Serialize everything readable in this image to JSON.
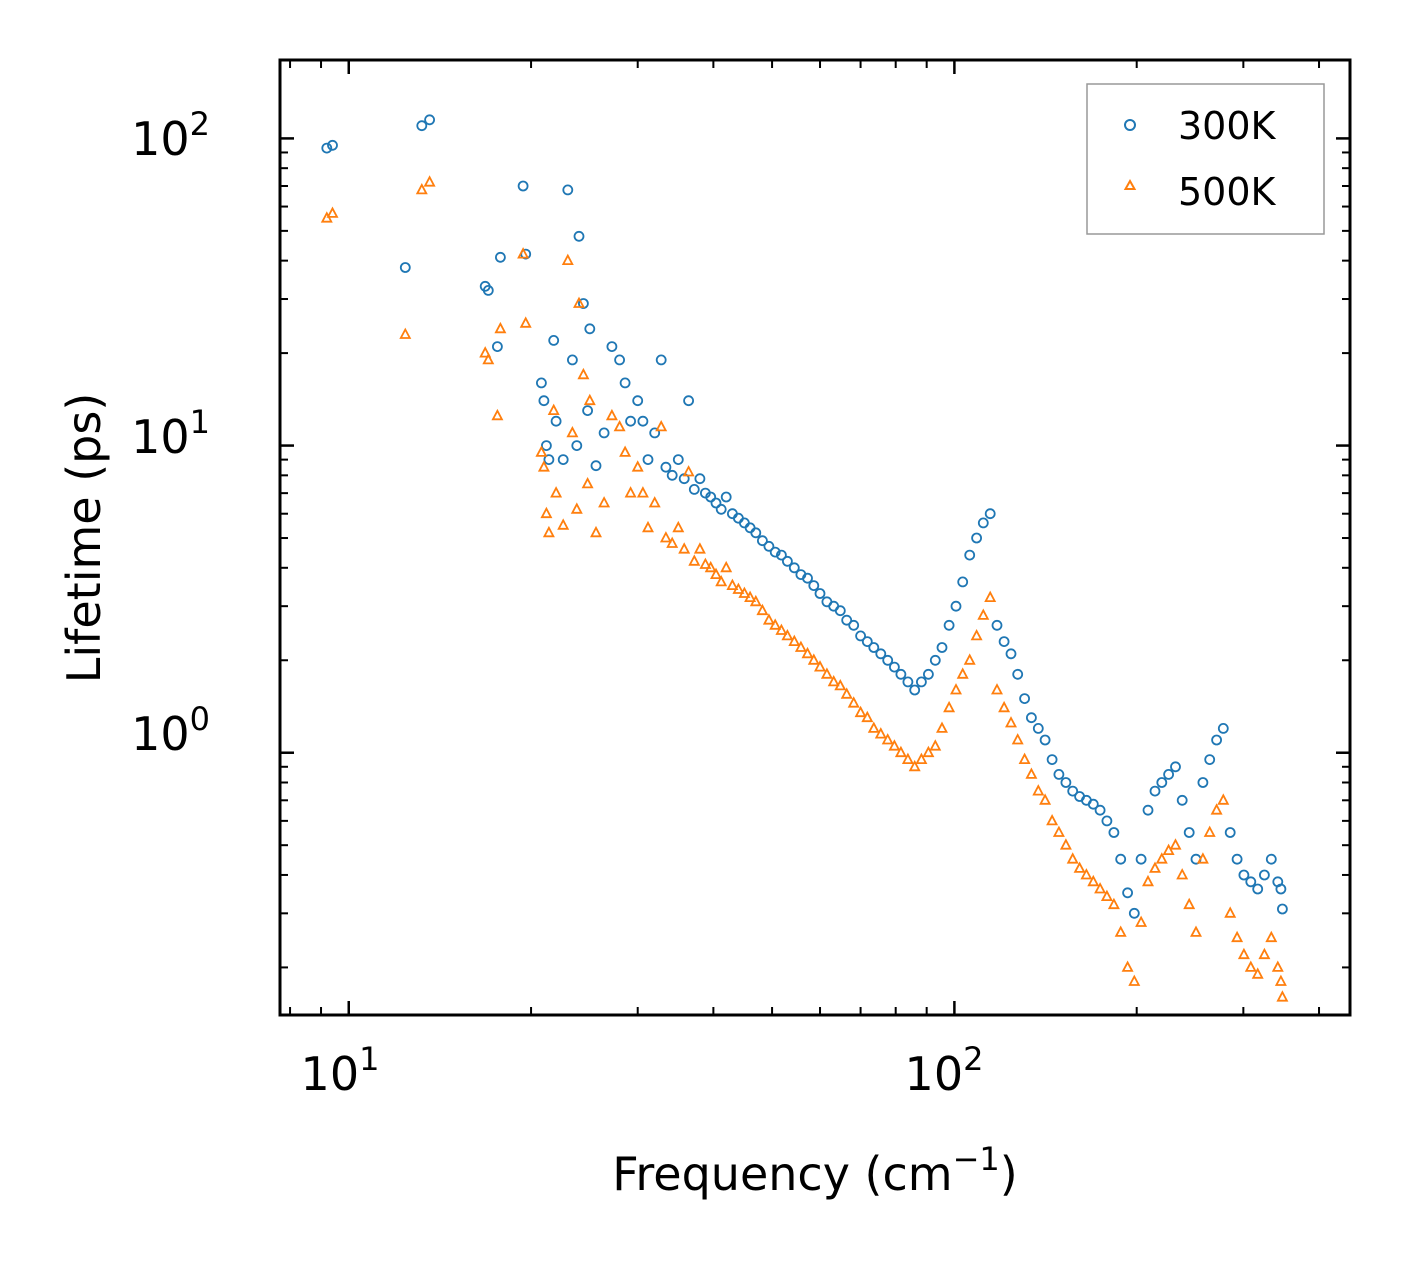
{
  "chart_data": {
    "type": "scatter",
    "title": "",
    "xlabel": "Frequency (cm",
    "xlabel_superscript": "−1",
    "xlabel_suffix": ")",
    "ylabel": "Lifetime (ps)",
    "xscale": "log",
    "yscale": "log",
    "xlim": [
      7.7,
      450
    ],
    "ylim": [
      0.14,
      180
    ],
    "x_ticks": [
      {
        "value": 10,
        "base": "10",
        "exp": "1"
      },
      {
        "value": 100,
        "base": "10",
        "exp": "2"
      }
    ],
    "y_ticks": [
      {
        "value": 1,
        "base": "10",
        "exp": "0"
      },
      {
        "value": 10,
        "base": "10",
        "exp": "1"
      },
      {
        "value": 100,
        "base": "10",
        "exp": "2"
      }
    ],
    "legend": {
      "position": "top-right",
      "entries": [
        "300K",
        "500K"
      ]
    },
    "colors": {
      "300K": "#1f77b4",
      "500K": "#ff7f0e"
    },
    "series": [
      {
        "name": "300K",
        "marker": "circle",
        "x": [
          9.2,
          9.4,
          12.4,
          13.2,
          13.6,
          16.8,
          17.0,
          17.6,
          17.8,
          19.4,
          19.6,
          20.8,
          21.0,
          21.2,
          21.4,
          21.8,
          22.0,
          22.6,
          23.0,
          23.4,
          23.8,
          24.0,
          24.4,
          24.8,
          25.0,
          25.6,
          26.4,
          27.2,
          28.0,
          28.6,
          29.2,
          30.0,
          30.6,
          31.2,
          32.0,
          32.8,
          33.4,
          34.2,
          35.0,
          35.8,
          36.4,
          37.2,
          38.0,
          38.8,
          39.6,
          40.4,
          41.2,
          42.0,
          43.0,
          44.0,
          45.0,
          46.0,
          47.0,
          48.2,
          49.4,
          50.6,
          51.8,
          53.0,
          54.4,
          55.8,
          57.2,
          58.6,
          60.0,
          61.6,
          63.2,
          64.8,
          66.4,
          68.2,
          70.0,
          71.8,
          73.6,
          75.6,
          77.6,
          79.6,
          81.6,
          83.8,
          86.0,
          88.2,
          90.6,
          93.0,
          95.4,
          98.0,
          100.6,
          103.2,
          106.0,
          108.8,
          111.6,
          114.6,
          117.6,
          120.8,
          124.0,
          127.2,
          130.6,
          134.0,
          137.6,
          141.2,
          145.0,
          148.8,
          152.8,
          156.8,
          161.0,
          165.2,
          169.6,
          174.0,
          178.6,
          183.4,
          188.2,
          193.2,
          198.2,
          203.4,
          208.8,
          214.4,
          220.0,
          225.8,
          231.8,
          237.8,
          244.2,
          250.6,
          257.2,
          264.0,
          271.0,
          278.0,
          285.4,
          293.0,
          300.6,
          308.6,
          316.8,
          325.0,
          333.6,
          342.0,
          346.0,
          348.0
        ],
        "y": [
          93,
          95,
          38,
          110,
          115,
          33,
          32,
          21,
          41,
          70,
          42,
          16,
          14,
          10,
          9,
          22,
          12,
          9,
          68,
          19,
          10,
          48,
          29,
          13,
          24,
          8.6,
          11,
          21,
          19,
          16,
          12,
          14,
          12,
          9,
          11,
          19,
          8.5,
          8,
          9,
          7.8,
          14,
          7.2,
          7.8,
          7,
          6.8,
          6.5,
          6.2,
          6.8,
          6,
          5.8,
          5.6,
          5.4,
          5.2,
          4.9,
          4.7,
          4.5,
          4.4,
          4.2,
          4.0,
          3.8,
          3.7,
          3.5,
          3.3,
          3.1,
          3.0,
          2.9,
          2.7,
          2.6,
          2.4,
          2.3,
          2.2,
          2.1,
          2.0,
          1.9,
          1.8,
          1.7,
          1.6,
          1.7,
          1.8,
          2.0,
          2.2,
          2.6,
          3.0,
          3.6,
          4.4,
          5.0,
          5.6,
          6.0,
          2.6,
          2.3,
          2.1,
          1.8,
          1.5,
          1.3,
          1.2,
          1.1,
          0.95,
          0.85,
          0.8,
          0.75,
          0.72,
          0.7,
          0.68,
          0.65,
          0.6,
          0.55,
          0.45,
          0.35,
          0.3,
          0.45,
          0.65,
          0.75,
          0.8,
          0.85,
          0.9,
          0.7,
          0.55,
          0.45,
          0.8,
          0.95,
          1.1,
          1.2,
          0.55,
          0.45,
          0.4,
          0.38,
          0.36,
          0.4,
          0.45,
          0.38,
          0.36,
          0.31
        ]
      },
      {
        "name": "500K",
        "marker": "triangle",
        "x": [
          9.2,
          9.4,
          12.4,
          13.2,
          13.6,
          16.8,
          17.0,
          17.6,
          17.8,
          19.4,
          19.6,
          20.8,
          21.0,
          21.2,
          21.4,
          21.8,
          22.0,
          22.6,
          23.0,
          23.4,
          23.8,
          24.0,
          24.4,
          24.8,
          25.0,
          25.6,
          26.4,
          27.2,
          28.0,
          28.6,
          29.2,
          30.0,
          30.6,
          31.2,
          32.0,
          32.8,
          33.4,
          34.2,
          35.0,
          35.8,
          36.4,
          37.2,
          38.0,
          38.8,
          39.6,
          40.4,
          41.2,
          42.0,
          43.0,
          44.0,
          45.0,
          46.0,
          47.0,
          48.2,
          49.4,
          50.6,
          51.8,
          53.0,
          54.4,
          55.8,
          57.2,
          58.6,
          60.0,
          61.6,
          63.2,
          64.8,
          66.4,
          68.2,
          70.0,
          71.8,
          73.6,
          75.6,
          77.6,
          79.6,
          81.6,
          83.8,
          86.0,
          88.2,
          90.6,
          93.0,
          95.4,
          98.0,
          100.6,
          103.2,
          106.0,
          108.8,
          111.6,
          114.6,
          117.6,
          120.8,
          124.0,
          127.2,
          130.6,
          134.0,
          137.6,
          141.2,
          145.0,
          148.8,
          152.8,
          156.8,
          161.0,
          165.2,
          169.6,
          174.0,
          178.6,
          183.4,
          188.2,
          193.2,
          198.2,
          203.4,
          208.8,
          214.4,
          220.0,
          225.8,
          231.8,
          237.8,
          244.2,
          250.6,
          257.2,
          264.0,
          271.0,
          278.0,
          285.4,
          293.0,
          300.6,
          308.6,
          316.8,
          325.0,
          333.6,
          342.0,
          346.0,
          348.0
        ],
        "y": [
          55,
          57,
          23,
          68,
          72,
          20,
          19,
          12.5,
          24,
          42,
          25,
          9.5,
          8.5,
          6,
          5.2,
          13,
          7,
          5.5,
          40,
          11,
          6.2,
          29,
          17,
          7.5,
          14,
          5.2,
          6.5,
          12.5,
          11.5,
          9.5,
          7,
          8.5,
          7,
          5.4,
          6.5,
          11.5,
          5,
          4.8,
          5.4,
          4.6,
          8.2,
          4.2,
          4.6,
          4.1,
          4.0,
          3.8,
          3.6,
          4.0,
          3.5,
          3.4,
          3.3,
          3.2,
          3.1,
          2.9,
          2.7,
          2.6,
          2.5,
          2.4,
          2.3,
          2.2,
          2.1,
          2.0,
          1.9,
          1.8,
          1.7,
          1.65,
          1.55,
          1.45,
          1.35,
          1.3,
          1.2,
          1.15,
          1.1,
          1.05,
          1.0,
          0.95,
          0.9,
          0.95,
          1.0,
          1.05,
          1.2,
          1.4,
          1.6,
          1.8,
          2.0,
          2.4,
          2.8,
          3.2,
          1.6,
          1.4,
          1.25,
          1.1,
          0.95,
          0.85,
          0.75,
          0.7,
          0.6,
          0.55,
          0.5,
          0.45,
          0.42,
          0.4,
          0.38,
          0.36,
          0.34,
          0.32,
          0.26,
          0.2,
          0.18,
          0.28,
          0.38,
          0.42,
          0.45,
          0.48,
          0.5,
          0.4,
          0.32,
          0.26,
          0.45,
          0.55,
          0.65,
          0.7,
          0.3,
          0.25,
          0.22,
          0.2,
          0.19,
          0.22,
          0.25,
          0.2,
          0.18,
          0.16
        ]
      }
    ]
  }
}
